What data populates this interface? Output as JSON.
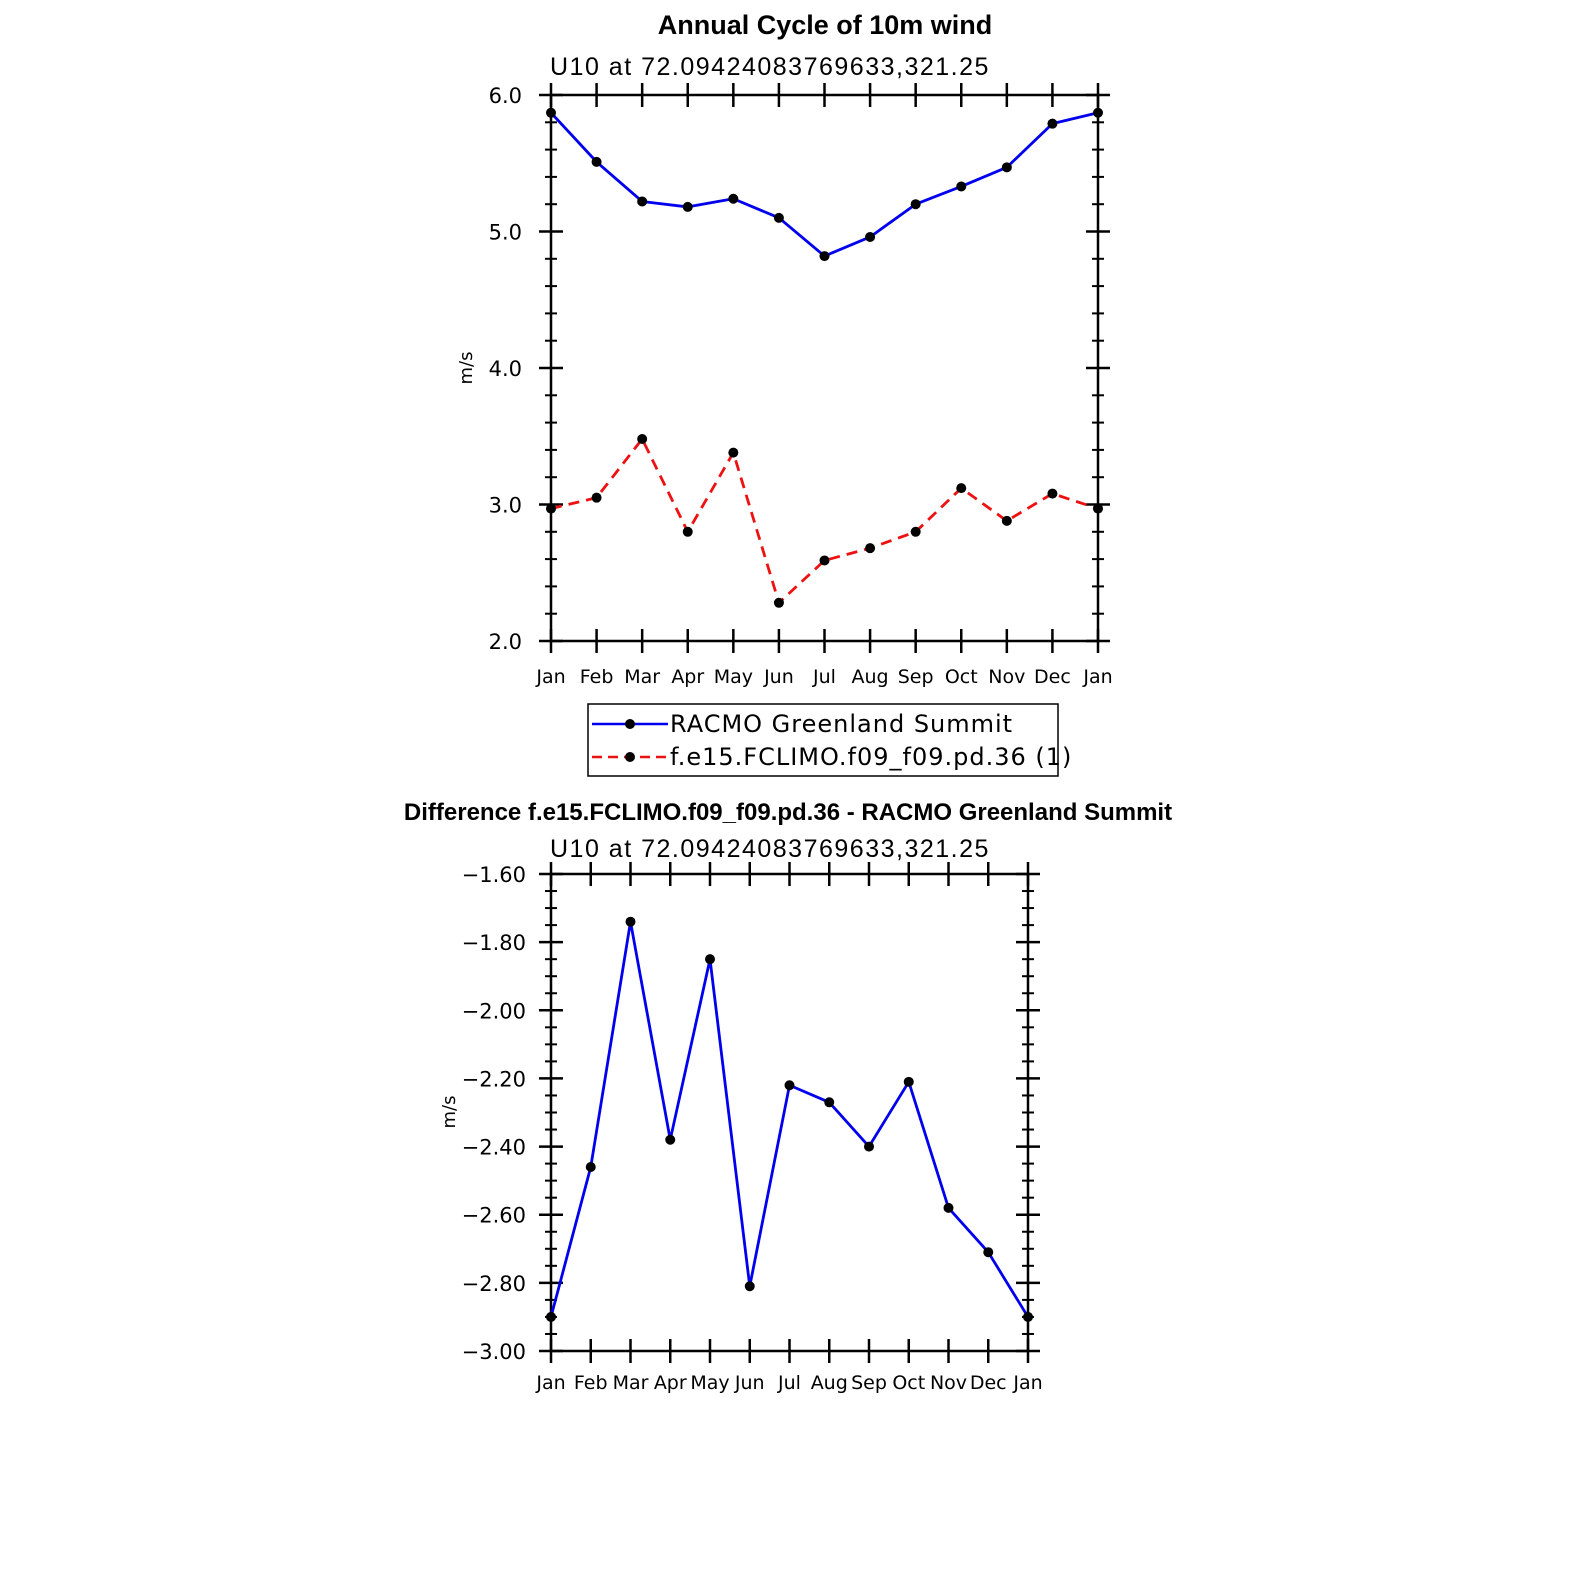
{
  "chart_data": [
    {
      "type": "line",
      "title": "Annual Cycle of 10m wind",
      "subtitle": "U10  at  72.09424083769633,321.25",
      "ylabel": "m/s",
      "xlabel": "",
      "ylim": [
        2.0,
        6.0
      ],
      "yticks": [
        "2.0",
        "3.0",
        "4.0",
        "5.0",
        "6.0"
      ],
      "yticks_values": [
        2.0,
        3.0,
        4.0,
        5.0,
        6.0
      ],
      "categories": [
        "Jan",
        "Feb",
        "Mar",
        "Apr",
        "May",
        "Jun",
        "Jul",
        "Aug",
        "Sep",
        "Oct",
        "Nov",
        "Dec",
        "Jan"
      ],
      "series": [
        {
          "name": "RACMO Greenland Summit",
          "color": "#0000ee",
          "dash": "solid",
          "values": [
            5.87,
            5.51,
            5.22,
            5.18,
            5.24,
            5.1,
            4.82,
            4.96,
            5.2,
            5.33,
            5.47,
            5.79,
            5.87
          ]
        },
        {
          "name": "f.e15.FCLIMO.f09_f09.pd.36 (1)",
          "color": "#ee1111",
          "dash": "dashed",
          "values": [
            2.97,
            3.05,
            3.48,
            2.8,
            3.38,
            2.28,
            2.59,
            2.68,
            2.8,
            3.12,
            2.88,
            3.08,
            2.97
          ]
        }
      ],
      "legend": "bottom"
    },
    {
      "type": "line",
      "title": "Difference f.e15.FCLIMO.f09_f09.pd.36 - RACMO Greenland Summit",
      "subtitle": "U10  at  72.09424083769633,321.25",
      "ylabel": "m/s",
      "xlabel": "",
      "ylim": [
        -3.0,
        -1.6
      ],
      "yticks": [
        "−3.00",
        "−2.80",
        "−2.60",
        "−2.40",
        "−2.20",
        "−2.00",
        "−1.80",
        "−1.60"
      ],
      "yticks_values": [
        -3.0,
        -2.8,
        -2.6,
        -2.4,
        -2.2,
        -2.0,
        -1.8,
        -1.6
      ],
      "categories": [
        "Jan",
        "Feb",
        "Mar",
        "Apr",
        "May",
        "Jun",
        "Jul",
        "Aug",
        "Sep",
        "Oct",
        "Nov",
        "Dec",
        "Jan"
      ],
      "series": [
        {
          "name": "Difference",
          "color": "#0000ee",
          "dash": "solid",
          "values": [
            -2.9,
            -2.46,
            -1.74,
            -2.38,
            -1.85,
            -2.81,
            -2.22,
            -2.27,
            -2.4,
            -2.21,
            -2.58,
            -2.71,
            -2.9
          ]
        }
      ]
    }
  ]
}
